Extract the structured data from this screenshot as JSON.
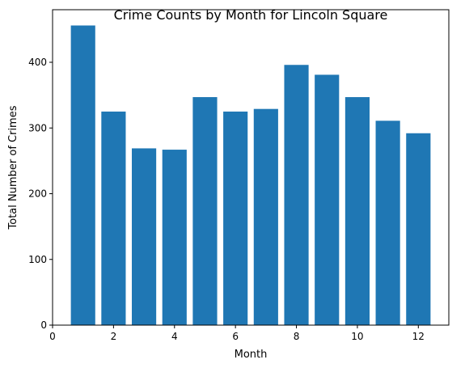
{
  "chart_data": {
    "type": "bar",
    "title": "Crime Counts by Month for Lincoln Square",
    "xlabel": "Month",
    "ylabel": "Total Number of Crimes",
    "x": [
      1,
      2,
      3,
      4,
      5,
      6,
      7,
      8,
      9,
      10,
      11,
      12
    ],
    "values": [
      456,
      325,
      269,
      267,
      347,
      325,
      329,
      396,
      381,
      347,
      311,
      292
    ],
    "xlim": [
      0,
      13
    ],
    "ylim": [
      0,
      480
    ],
    "xticks": [
      0,
      2,
      4,
      6,
      8,
      10,
      12
    ],
    "yticks": [
      0,
      100,
      200,
      300,
      400
    ],
    "bar_color": "#1f77b4",
    "grid": false,
    "legend": false
  }
}
